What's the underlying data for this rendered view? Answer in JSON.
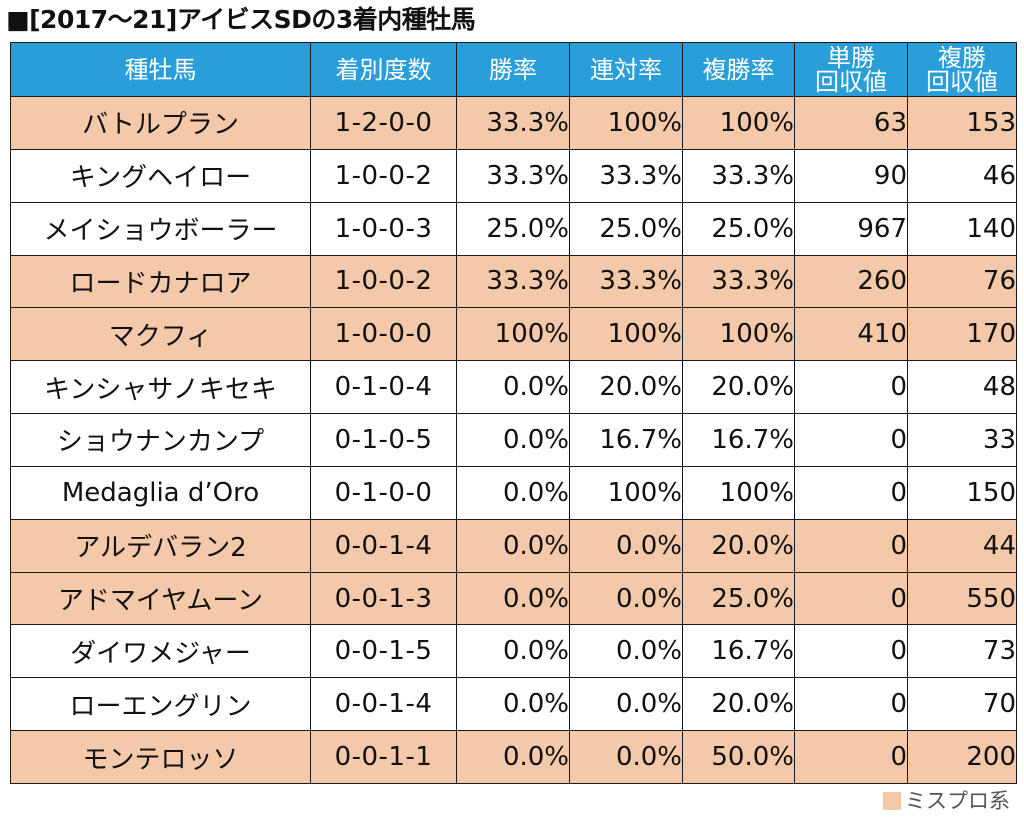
{
  "title": "■[2017～21]アイビスSDの3着内種牡馬",
  "colors": {
    "header_bg": "#2a9ed8",
    "highlight_row": "#f4c9a9",
    "header_text": "#ffffff"
  },
  "headers": {
    "sire": "種牡馬",
    "record": "着別度数",
    "win_rate": "勝率",
    "top2_rate": "連対率",
    "top3_rate": "複勝率",
    "win_return_1": "単勝",
    "win_return_2": "回収値",
    "place_return_1": "複勝",
    "place_return_2": "回収値"
  },
  "rows": [
    {
      "sire": "バトルプラン",
      "record": "1-2-0-0",
      "win_rate": "33.3%",
      "top2_rate": "100%",
      "top3_rate": "100%",
      "win_return": "63",
      "place_return": "153",
      "highlight": true
    },
    {
      "sire": "キングヘイロー",
      "record": "1-0-0-2",
      "win_rate": "33.3%",
      "top2_rate": "33.3%",
      "top3_rate": "33.3%",
      "win_return": "90",
      "place_return": "46",
      "highlight": false
    },
    {
      "sire": "メイショウボーラー",
      "record": "1-0-0-3",
      "win_rate": "25.0%",
      "top2_rate": "25.0%",
      "top3_rate": "25.0%",
      "win_return": "967",
      "place_return": "140",
      "highlight": false
    },
    {
      "sire": "ロードカナロア",
      "record": "1-0-0-2",
      "win_rate": "33.3%",
      "top2_rate": "33.3%",
      "top3_rate": "33.3%",
      "win_return": "260",
      "place_return": "76",
      "highlight": true
    },
    {
      "sire": "マクフィ",
      "record": "1-0-0-0",
      "win_rate": "100%",
      "top2_rate": "100%",
      "top3_rate": "100%",
      "win_return": "410",
      "place_return": "170",
      "highlight": true
    },
    {
      "sire": "キンシャサノキセキ",
      "record": "0-1-0-4",
      "win_rate": "0.0%",
      "top2_rate": "20.0%",
      "top3_rate": "20.0%",
      "win_return": "0",
      "place_return": "48",
      "highlight": false
    },
    {
      "sire": "ショウナンカンプ",
      "record": "0-1-0-5",
      "win_rate": "0.0%",
      "top2_rate": "16.7%",
      "top3_rate": "16.7%",
      "win_return": "0",
      "place_return": "33",
      "highlight": false
    },
    {
      "sire": "Medaglia d’Oro",
      "record": "0-1-0-0",
      "win_rate": "0.0%",
      "top2_rate": "100%",
      "top3_rate": "100%",
      "win_return": "0",
      "place_return": "150",
      "highlight": false
    },
    {
      "sire": "アルデバラン2",
      "record": "0-0-1-4",
      "win_rate": "0.0%",
      "top2_rate": "0.0%",
      "top3_rate": "20.0%",
      "win_return": "0",
      "place_return": "44",
      "highlight": true
    },
    {
      "sire": "アドマイヤムーン",
      "record": "0-0-1-3",
      "win_rate": "0.0%",
      "top2_rate": "0.0%",
      "top3_rate": "25.0%",
      "win_return": "0",
      "place_return": "550",
      "highlight": true
    },
    {
      "sire": "ダイワメジャー",
      "record": "0-0-1-5",
      "win_rate": "0.0%",
      "top2_rate": "0.0%",
      "top3_rate": "16.7%",
      "win_return": "0",
      "place_return": "73",
      "highlight": false
    },
    {
      "sire": "ローエングリン",
      "record": "0-0-1-4",
      "win_rate": "0.0%",
      "top2_rate": "0.0%",
      "top3_rate": "20.0%",
      "win_return": "0",
      "place_return": "70",
      "highlight": false
    },
    {
      "sire": "モンテロッソ",
      "record": "0-0-1-1",
      "win_rate": "0.0%",
      "top2_rate": "0.0%",
      "top3_rate": "50.0%",
      "win_return": "0",
      "place_return": "200",
      "highlight": true
    }
  ],
  "legend": {
    "label": "ミスプロ系"
  }
}
